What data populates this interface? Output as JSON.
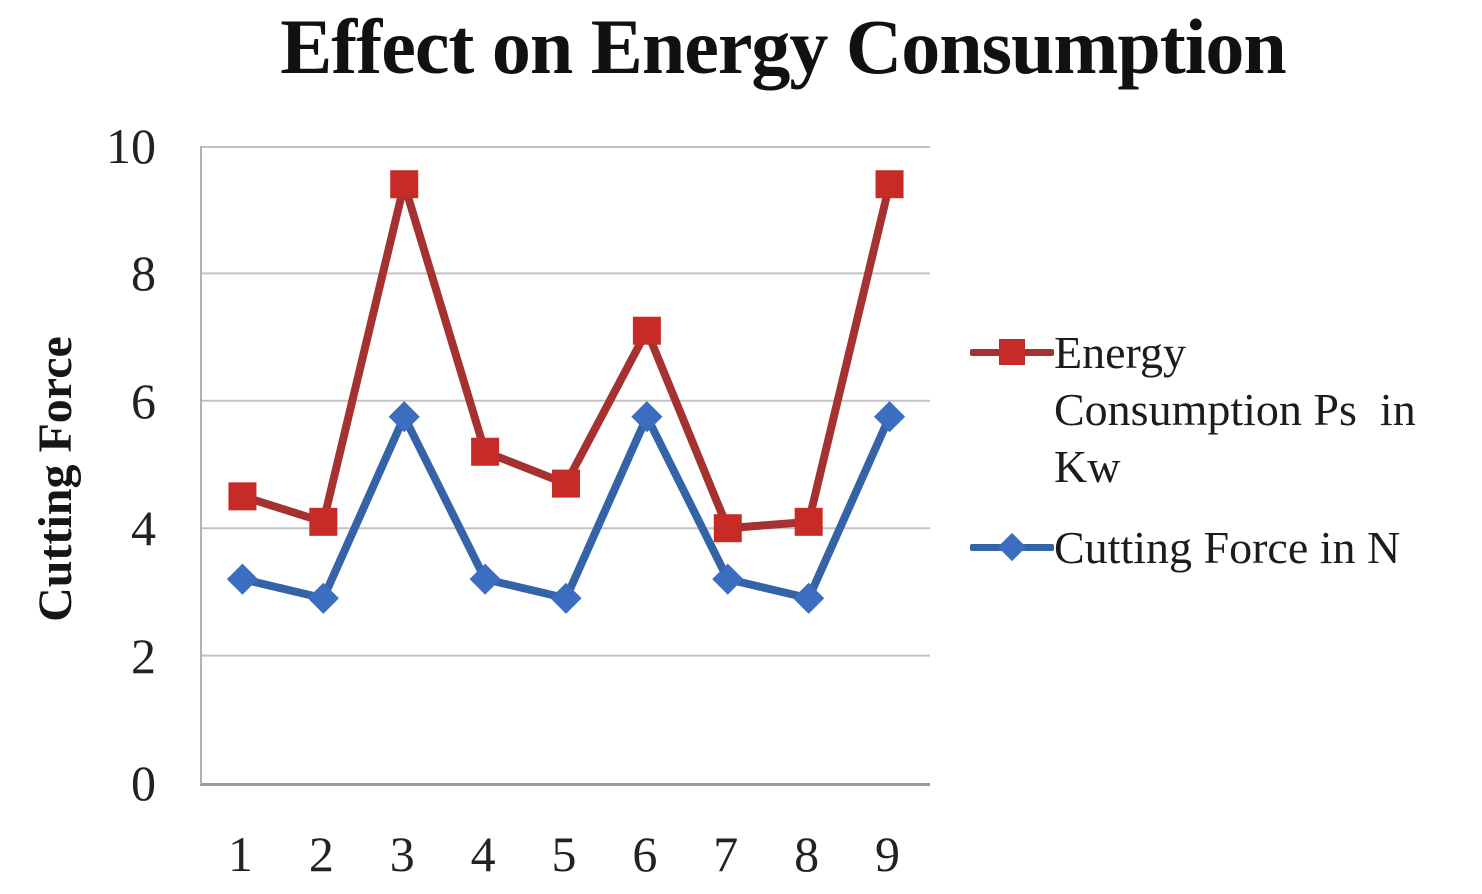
{
  "page": {
    "background": "#ffffff"
  },
  "chart_data": {
    "type": "line",
    "title": "Effect on Energy Consumption",
    "ylabel": "Cutting Force",
    "xlabel": "",
    "categories": [
      "1",
      "2",
      "3",
      "4",
      "5",
      "6",
      "7",
      "8",
      "9"
    ],
    "ylim": [
      0,
      10
    ],
    "yticks": [
      10,
      8,
      6,
      4,
      2,
      0
    ],
    "grid": true,
    "grid_color": "#c3c3c3",
    "axis_color": "#9a9a9a",
    "legend_position": "right",
    "series": [
      {
        "name": "Energy Consumption Ps  in Kw",
        "legend_lines": [
          "Energy",
          "Consumption Ps  in",
          "Kw"
        ],
        "marker": "square",
        "marker_color": "#c62b27",
        "line_color": "#a53230",
        "values": [
          4.5,
          4.1,
          9.4,
          5.2,
          4.7,
          7.1,
          4.0,
          4.1,
          9.4
        ]
      },
      {
        "name": "Cutting Force in N",
        "legend_lines": [
          "Cutting Force in N"
        ],
        "marker": "diamond",
        "marker_color": "#3b6dc0",
        "line_color": "#3463a8",
        "values": [
          3.2,
          2.9,
          5.75,
          3.2,
          2.9,
          5.75,
          3.2,
          2.9,
          5.75
        ]
      }
    ]
  }
}
